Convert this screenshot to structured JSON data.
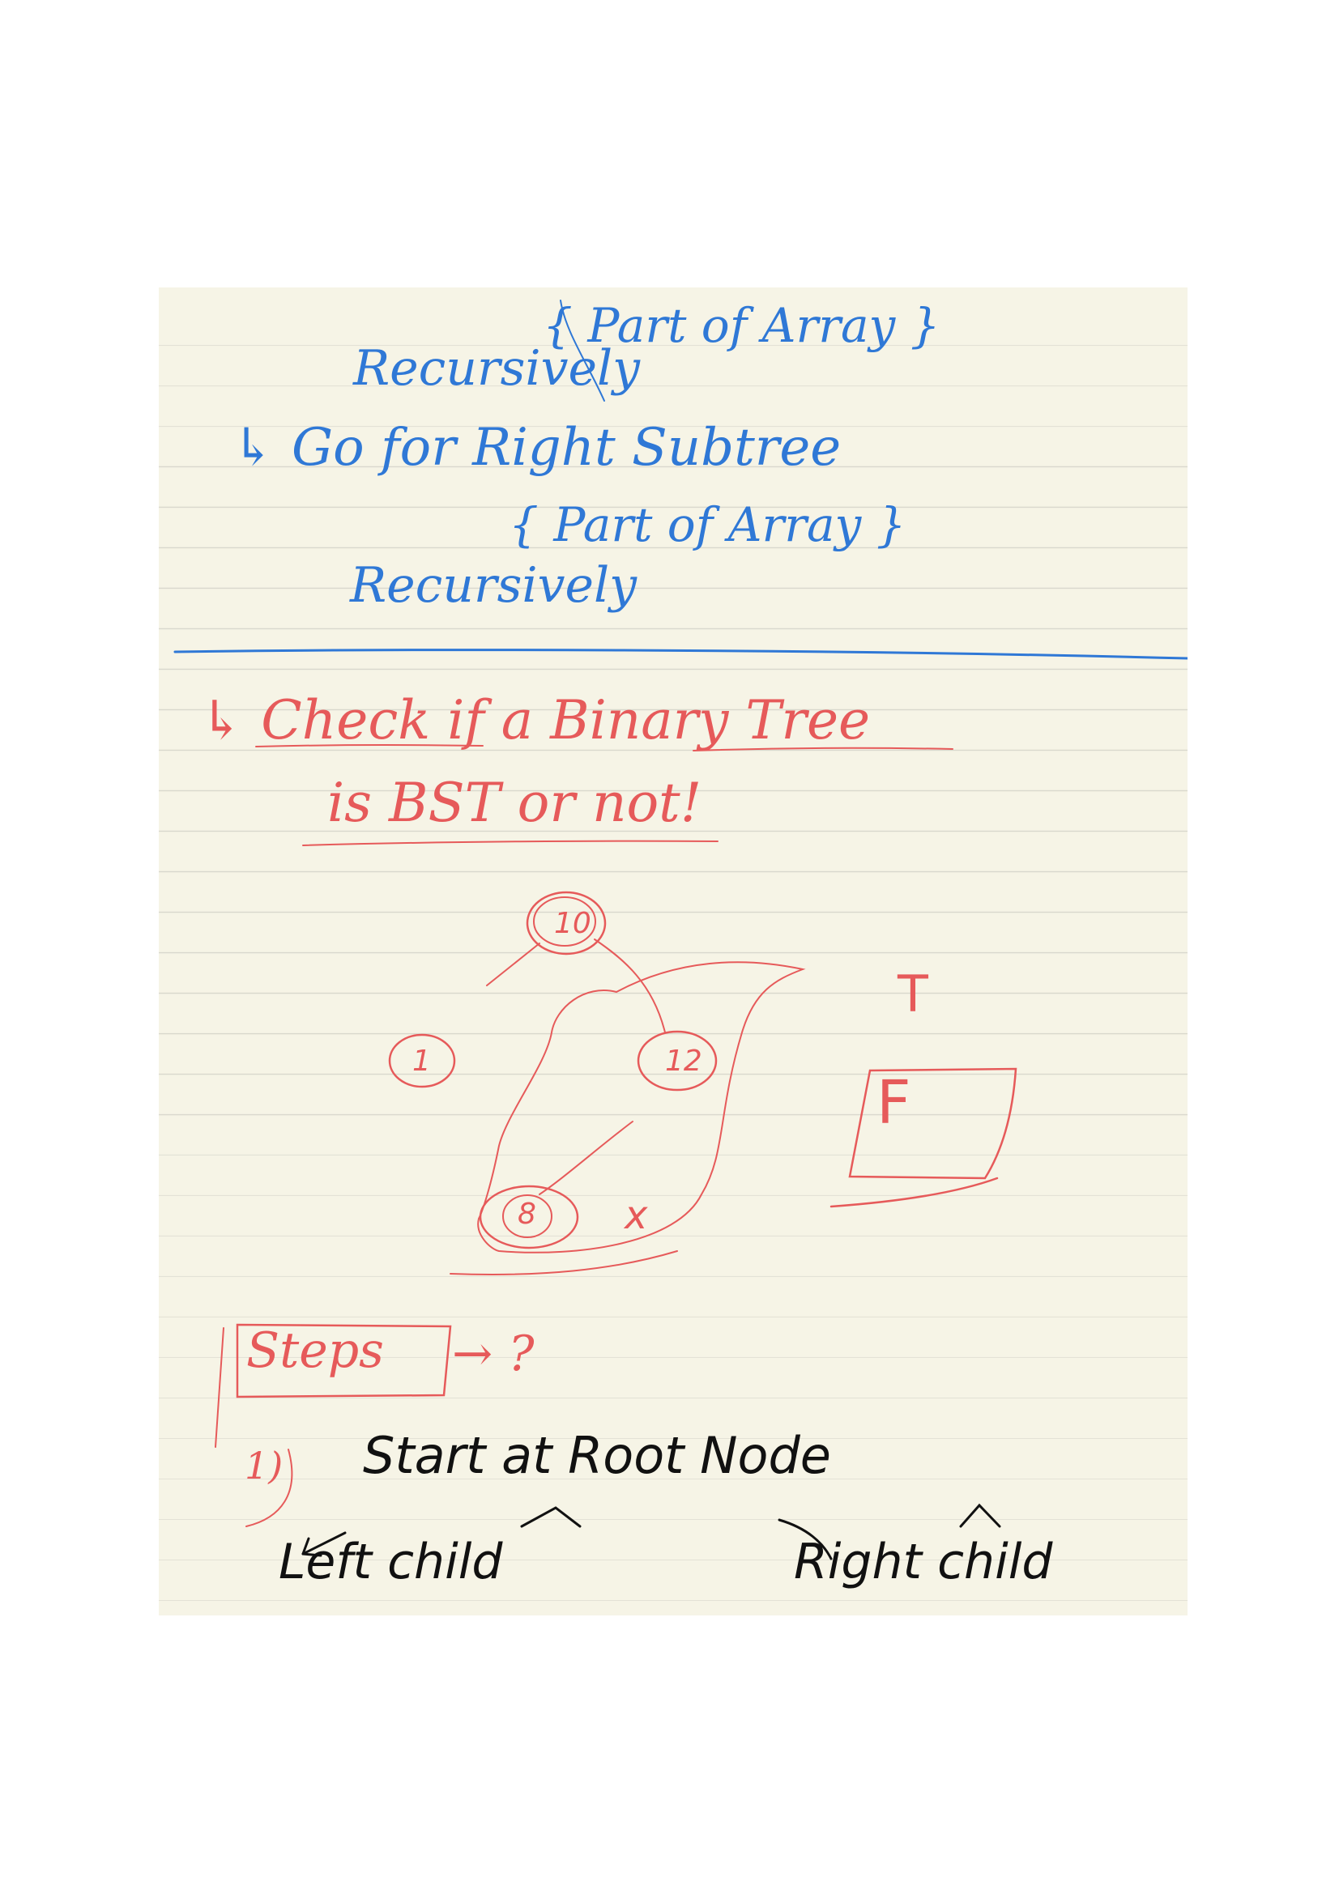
{
  "note": {
    "blue_block": {
      "part_of_array_1": "{ Part of Array }",
      "recursively_1": "Recursively",
      "go_for_right_subtree": "↳ Go for Right Subtree",
      "part_of_array_2": "{ Part of Array }",
      "recursively_2": "Recursively"
    },
    "title": {
      "line1": "↳ Check if a Binary Tree",
      "line2": "is BST or not!"
    },
    "tree": {
      "root": "10",
      "left": "1",
      "right": "12",
      "right_left": "8",
      "cross": "x"
    },
    "answers": {
      "t": "T",
      "f": "F"
    },
    "steps": {
      "label": "Steps",
      "arrow_q": "→ ?",
      "item_num": "1)",
      "step1": "Start at Root Node",
      "left_child": "Left child",
      "right_child": "Right child"
    },
    "colors": {
      "blue_ink": "#2f78d6",
      "red_ink": "#e65a5a",
      "black_ink": "#111111",
      "paper": "#f6f4e6"
    }
  }
}
